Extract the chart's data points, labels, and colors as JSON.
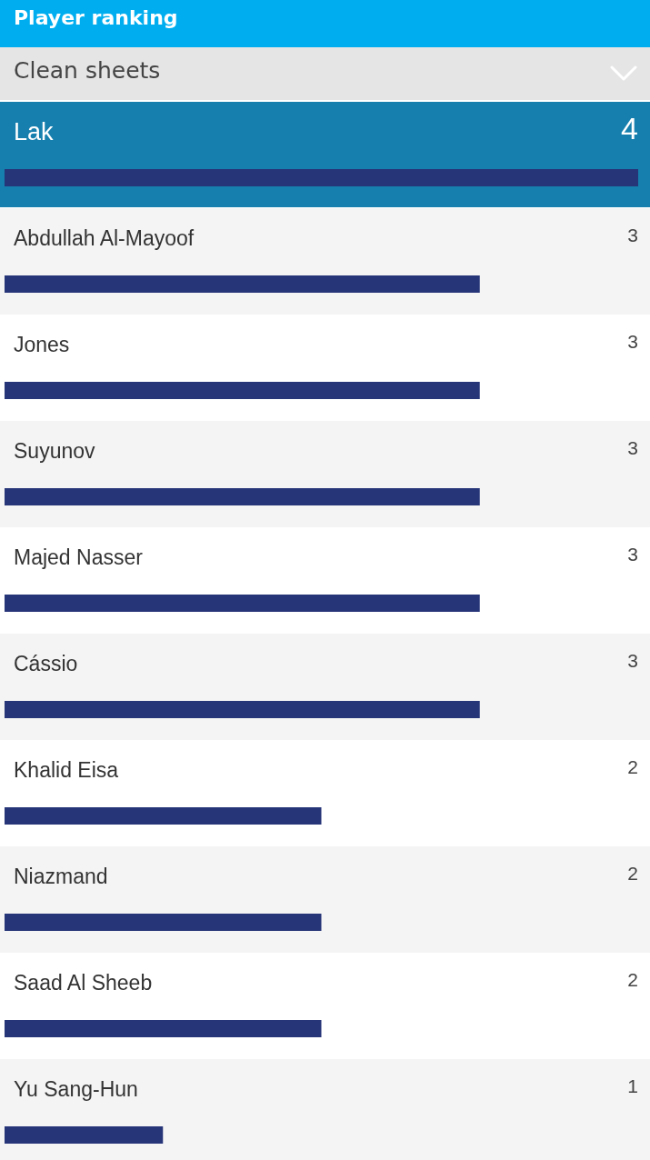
{
  "chart_data": {
    "type": "bar",
    "orientation": "horizontal",
    "title": "Player ranking",
    "subtitle": "Clean sheets",
    "categories": [
      "Lak",
      "Abdullah Al-Mayoof",
      "Jones",
      "Suyunov",
      "Majed Nasser",
      "Cássio",
      "Khalid Eisa",
      "Niazmand",
      "Saad Al Sheeb",
      "Yu Sang-Hun"
    ],
    "values": [
      4,
      3,
      3,
      3,
      3,
      3,
      2,
      2,
      2,
      1
    ],
    "color": "#263478",
    "xlim": [
      0,
      4
    ],
    "data_labels": true
  }
}
